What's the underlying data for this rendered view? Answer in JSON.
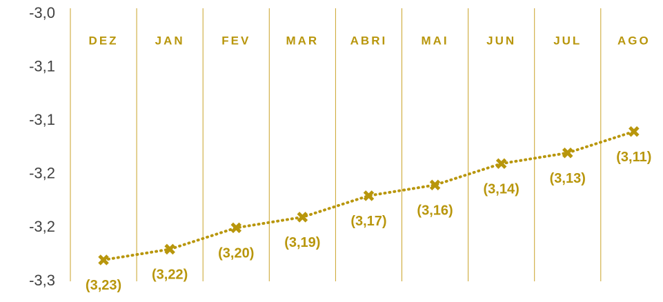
{
  "chart_data": {
    "type": "line",
    "categories": [
      "DEZ",
      "JAN",
      "FEV",
      "MAR",
      "ABRI",
      "MAI",
      "JUN",
      "JUL",
      "AGO"
    ],
    "series": [
      {
        "color": "#b8960c",
        "values": [
          -3.23,
          -3.22,
          -3.2,
          -3.19,
          -3.17,
          -3.16,
          -3.14,
          -3.13,
          -3.11
        ],
        "value_labels": [
          "(3,23)",
          "(3,22)",
          "(3,20)",
          "(3,19)",
          "(3,17)",
          "(3,16)",
          "(3,14)",
          "(3,13)",
          "(3,11)"
        ]
      }
    ],
    "ylim": [
      -3.25,
      -3.0
    ],
    "yticks": [
      {
        "value": -3.0,
        "label": "-3,0"
      },
      {
        "value": -3.05,
        "label": "-3,1"
      },
      {
        "value": -3.1,
        "label": "-3,1"
      },
      {
        "value": -3.15,
        "label": "-3,2"
      },
      {
        "value": -3.2,
        "label": "-3,2"
      },
      {
        "value": -3.25,
        "label": "-3,3"
      }
    ]
  }
}
